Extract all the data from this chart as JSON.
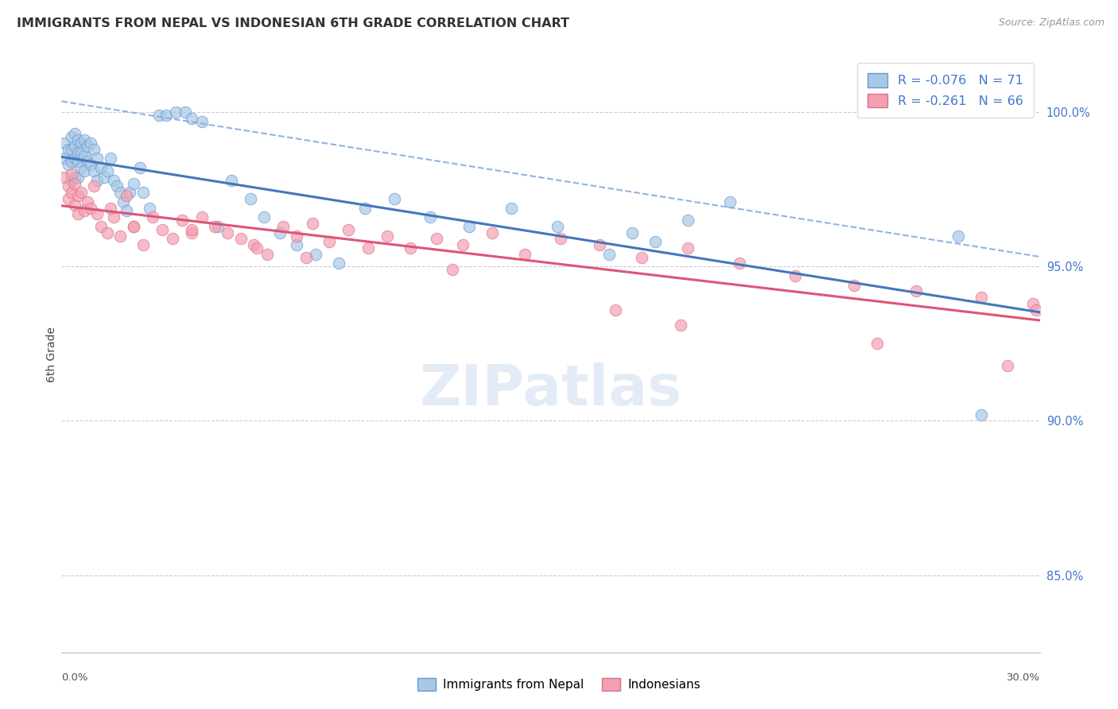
{
  "title": "IMMIGRANTS FROM NEPAL VS INDONESIAN 6TH GRADE CORRELATION CHART",
  "source": "Source: ZipAtlas.com",
  "ylabel": "6th Grade",
  "xlim": [
    0.0,
    0.3
  ],
  "ylim": [
    0.825,
    1.018
  ],
  "ytick_positions": [
    0.85,
    0.9,
    0.95,
    1.0
  ],
  "ytick_labels": [
    "85.0%",
    "90.0%",
    "95.0%",
    "100.0%"
  ],
  "blue_scatter_color": "#a8c8e8",
  "blue_edge_color": "#6699cc",
  "pink_scatter_color": "#f4a0b0",
  "pink_edge_color": "#d87090",
  "blue_line_color": "#4477bb",
  "pink_line_color": "#dd5577",
  "dashed_color": "#88aadd",
  "grid_color": "#cccccc",
  "title_color": "#333333",
  "right_tick_color": "#4477cc",
  "watermark_color": "#ccddf0",
  "legend_text_color": "#4477cc",
  "r1": "-0.076",
  "n1": "71",
  "r2": "-0.261",
  "n2": "66",
  "nepal_x": [
    0.001,
    0.001,
    0.002,
    0.002,
    0.003,
    0.003,
    0.003,
    0.003,
    0.004,
    0.004,
    0.004,
    0.004,
    0.005,
    0.005,
    0.005,
    0.005,
    0.006,
    0.006,
    0.006,
    0.007,
    0.007,
    0.007,
    0.008,
    0.008,
    0.009,
    0.009,
    0.01,
    0.01,
    0.011,
    0.011,
    0.012,
    0.013,
    0.014,
    0.015,
    0.016,
    0.017,
    0.018,
    0.019,
    0.02,
    0.021,
    0.022,
    0.024,
    0.025,
    0.027,
    0.03,
    0.032,
    0.035,
    0.038,
    0.04,
    0.043,
    0.048,
    0.052,
    0.058,
    0.062,
    0.067,
    0.072,
    0.078,
    0.085,
    0.093,
    0.102,
    0.113,
    0.125,
    0.138,
    0.152,
    0.168,
    0.175,
    0.182,
    0.192,
    0.205,
    0.275,
    0.282
  ],
  "nepal_y": [
    0.99,
    0.985,
    0.988,
    0.983,
    0.992,
    0.988,
    0.984,
    0.978,
    0.993,
    0.989,
    0.985,
    0.979,
    0.991,
    0.987,
    0.984,
    0.979,
    0.99,
    0.987,
    0.982,
    0.991,
    0.986,
    0.981,
    0.989,
    0.984,
    0.99,
    0.983,
    0.988,
    0.981,
    0.985,
    0.978,
    0.982,
    0.979,
    0.981,
    0.985,
    0.978,
    0.976,
    0.974,
    0.971,
    0.968,
    0.974,
    0.977,
    0.982,
    0.974,
    0.969,
    0.999,
    0.999,
    1.0,
    1.0,
    0.998,
    0.997,
    0.963,
    0.978,
    0.972,
    0.966,
    0.961,
    0.957,
    0.954,
    0.951,
    0.969,
    0.972,
    0.966,
    0.963,
    0.969,
    0.963,
    0.954,
    0.961,
    0.958,
    0.965,
    0.971,
    0.96,
    0.902
  ],
  "indo_x": [
    0.001,
    0.002,
    0.002,
    0.003,
    0.003,
    0.004,
    0.004,
    0.005,
    0.005,
    0.006,
    0.007,
    0.008,
    0.009,
    0.01,
    0.011,
    0.012,
    0.014,
    0.016,
    0.018,
    0.02,
    0.022,
    0.025,
    0.028,
    0.031,
    0.034,
    0.037,
    0.04,
    0.043,
    0.047,
    0.051,
    0.055,
    0.059,
    0.063,
    0.068,
    0.072,
    0.077,
    0.082,
    0.088,
    0.094,
    0.1,
    0.107,
    0.115,
    0.123,
    0.132,
    0.142,
    0.153,
    0.165,
    0.178,
    0.192,
    0.208,
    0.225,
    0.243,
    0.262,
    0.282,
    0.298,
    0.299,
    0.19,
    0.12,
    0.075,
    0.04,
    0.022,
    0.015,
    0.06,
    0.17,
    0.25,
    0.29
  ],
  "indo_y": [
    0.979,
    0.976,
    0.972,
    0.98,
    0.974,
    0.977,
    0.97,
    0.973,
    0.967,
    0.974,
    0.968,
    0.971,
    0.969,
    0.976,
    0.967,
    0.963,
    0.961,
    0.966,
    0.96,
    0.973,
    0.963,
    0.957,
    0.966,
    0.962,
    0.959,
    0.965,
    0.961,
    0.966,
    0.963,
    0.961,
    0.959,
    0.957,
    0.954,
    0.963,
    0.96,
    0.964,
    0.958,
    0.962,
    0.956,
    0.96,
    0.956,
    0.959,
    0.957,
    0.961,
    0.954,
    0.959,
    0.957,
    0.953,
    0.956,
    0.951,
    0.947,
    0.944,
    0.942,
    0.94,
    0.938,
    0.936,
    0.931,
    0.949,
    0.953,
    0.962,
    0.963,
    0.969,
    0.956,
    0.936,
    0.925,
    0.918
  ]
}
